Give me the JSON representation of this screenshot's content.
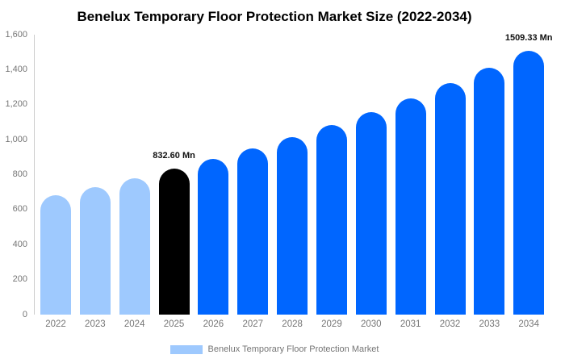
{
  "chart_data": {
    "type": "bar",
    "title": "Benelux Temporary Floor Protection Market Size (2022-2034)",
    "categories": [
      "2022",
      "2023",
      "2024",
      "2025",
      "2026",
      "2027",
      "2028",
      "2029",
      "2030",
      "2031",
      "2032",
      "2033",
      "2034"
    ],
    "values": [
      683,
      729,
      779,
      832.6,
      889,
      950,
      1015,
      1085,
      1159,
      1238,
      1323,
      1413,
      1509.33
    ],
    "unit": "Mn",
    "bar_colors": [
      "#9EC9FE",
      "#9EC9FE",
      "#9EC9FE",
      "#000000",
      "#0066FF",
      "#0066FF",
      "#0066FF",
      "#0066FF",
      "#0066FF",
      "#0066FF",
      "#0066FF",
      "#0066FF",
      "#0066FF"
    ],
    "ylim": [
      0,
      1600
    ],
    "ytick_interval": 200,
    "yticks": [
      "0",
      "200",
      "400",
      "600",
      "800",
      "1,000",
      "1,200",
      "1,400",
      "1,600"
    ],
    "grid": false,
    "annotations": [
      {
        "category": "2025",
        "text": "832.60 Mn"
      },
      {
        "category": "2034",
        "text": "1509.33 Mn"
      }
    ],
    "legend": {
      "position": "bottom",
      "label": "Benelux Temporary Floor Protection Market",
      "swatch_color": "#9EC9FE"
    },
    "colors": {
      "historical_bar": "#9EC9FE",
      "highlight_bar": "#000000",
      "forecast_bar": "#0066FF",
      "axis_line": "#cccccc",
      "tick_text": "#757575",
      "title_text": "#000000"
    }
  }
}
